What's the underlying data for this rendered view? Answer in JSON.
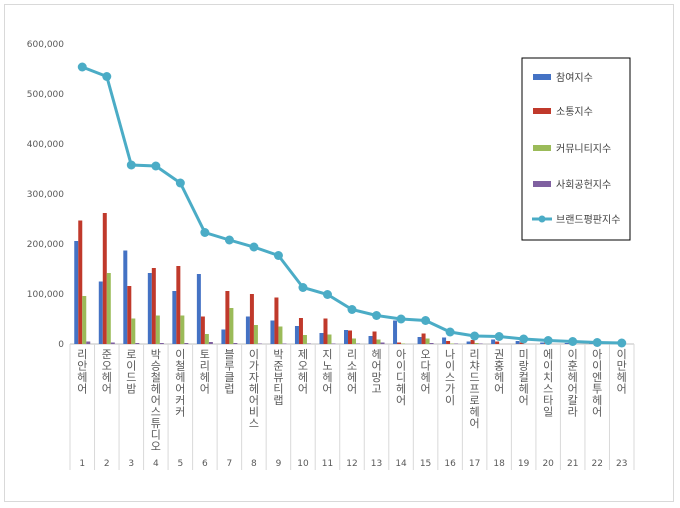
{
  "chart_data": {
    "type": "bar",
    "title": "",
    "xlabel": "",
    "ylabel": "",
    "ylim": [
      0,
      600000
    ],
    "yticks": [
      "0",
      "100,000",
      "200,000",
      "300,000",
      "400,000",
      "500,000",
      "600,000"
    ],
    "categories": [
      "리안헤어",
      "준오헤어",
      "로이드밤",
      "박승철헤어스튜디오",
      "이철헤어커커",
      "토리헤어",
      "블루클럽",
      "이가자헤어비스",
      "박준뷰티랩",
      "제오헤어",
      "지노헤어",
      "리소헤어",
      "헤어망고",
      "아이디헤어",
      "오다헤어",
      "나이스가이",
      "리챠드프로헤어",
      "권홍헤어",
      "미랑컬헤어",
      "에이치스타일",
      "이훈헤어칼라",
      "아이엔투헤어",
      "이만헤어"
    ],
    "indices": [
      "1",
      "2",
      "3",
      "4",
      "5",
      "6",
      "7",
      "8",
      "9",
      "10",
      "11",
      "12",
      "13",
      "14",
      "15",
      "16",
      "17",
      "18",
      "19",
      "20",
      "21",
      "22",
      "23"
    ],
    "legend_position": "right",
    "colors": {
      "참여지수": "#4472c4",
      "소통지수": "#c0392b",
      "커뮤니티지수": "#9bbb59",
      "사회공헌지수": "#7f60a0",
      "브랜드평판지수": "#4bacc6"
    },
    "series": [
      {
        "name": "참여지수",
        "kind": "bar",
        "values": [
          206000,
          125000,
          187000,
          142000,
          106000,
          140000,
          29000,
          55000,
          47000,
          36000,
          22000,
          28000,
          16000,
          47000,
          14000,
          13000,
          5000,
          9000,
          6000,
          3000,
          2000,
          1000,
          0
        ]
      },
      {
        "name": "소통지수",
        "kind": "bar",
        "values": [
          247000,
          262000,
          116000,
          152000,
          156000,
          55000,
          106000,
          100000,
          93000,
          52000,
          51000,
          27000,
          25000,
          3000,
          21000,
          6000,
          8000,
          5000,
          3000,
          3000,
          2000,
          1000,
          1000
        ]
      },
      {
        "name": "커뮤니티지수",
        "kind": "bar",
        "values": [
          96000,
          142000,
          51000,
          57000,
          57000,
          20000,
          72000,
          38000,
          35000,
          18000,
          19000,
          11000,
          9000,
          1000,
          11000,
          1000,
          2000,
          0,
          0,
          0,
          0,
          0,
          0
        ]
      },
      {
        "name": "사회공헌지수",
        "kind": "bar",
        "values": [
          5000,
          3000,
          2000,
          2000,
          2000,
          4000,
          2000,
          1000,
          1000,
          1000,
          1000,
          1000,
          3000,
          0,
          2000,
          1000,
          1000,
          0,
          0,
          0,
          0,
          0,
          0
        ]
      },
      {
        "name": "브랜드평판지수",
        "kind": "line",
        "values": [
          554000,
          535000,
          358000,
          356000,
          322000,
          223000,
          208000,
          194000,
          177000,
          113000,
          99000,
          69000,
          57000,
          50000,
          47000,
          24000,
          16000,
          15000,
          10000,
          7000,
          5000,
          3000,
          2000
        ]
      }
    ]
  }
}
